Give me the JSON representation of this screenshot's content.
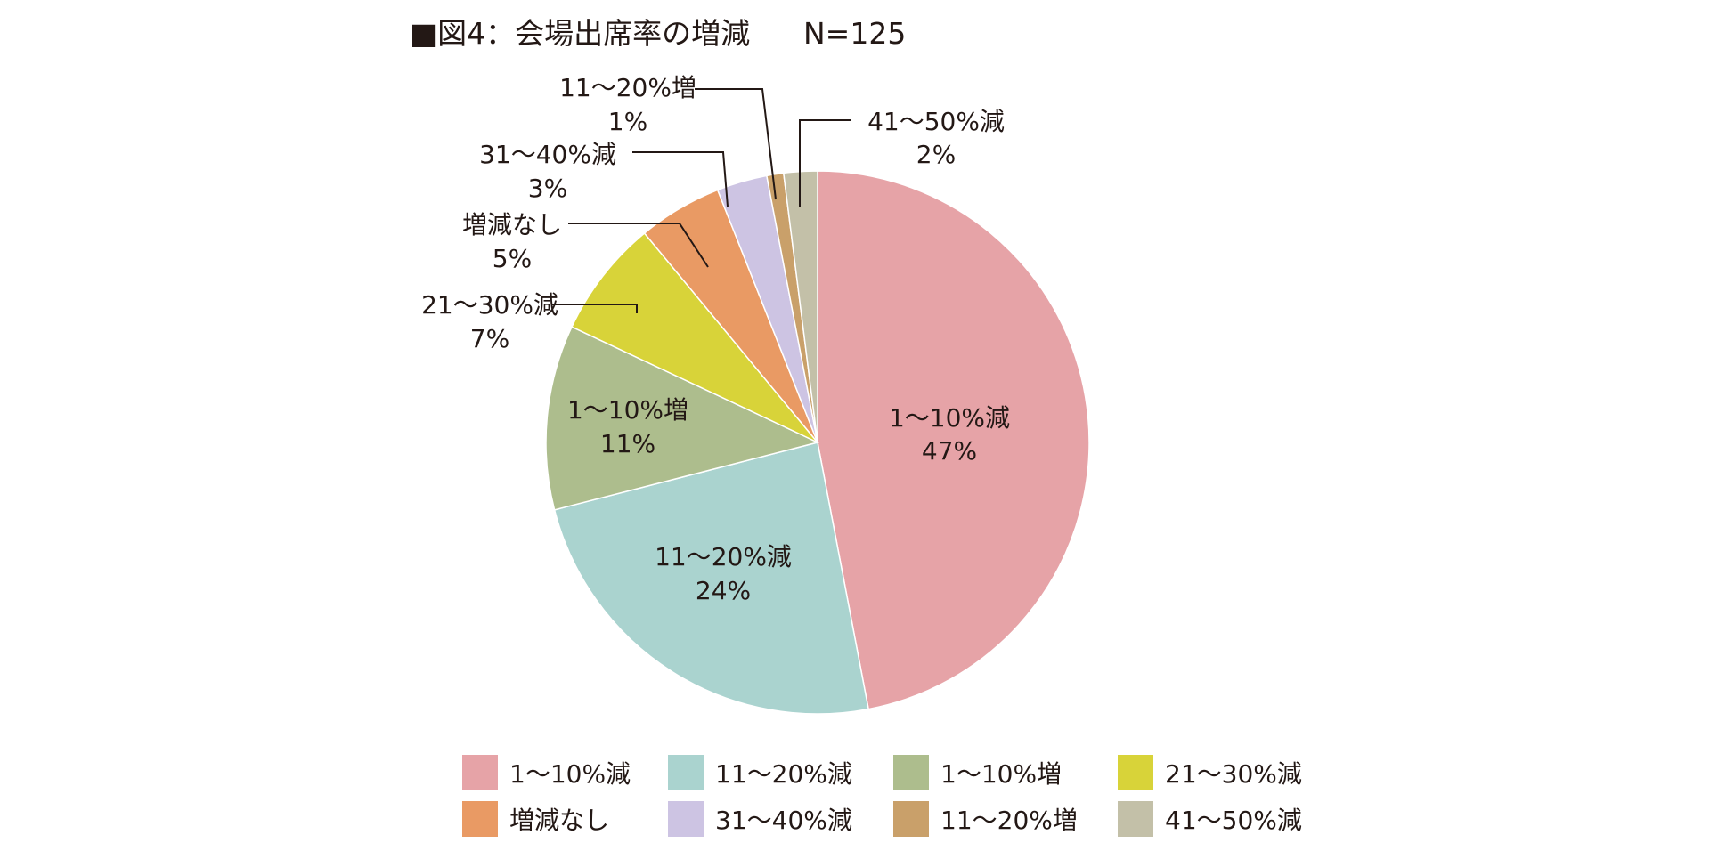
{
  "chart_data": {
    "type": "pie",
    "title": "■図4：会場出席率の増減",
    "subtitle": "N=125",
    "slices": [
      {
        "label": "1〜10%減",
        "value": 47,
        "value_label": "47%",
        "color": "#e6a3a7"
      },
      {
        "label": "11〜20%減",
        "value": 24,
        "value_label": "24%",
        "color": "#aad3cf"
      },
      {
        "label": "1〜10%増",
        "value": 11,
        "value_label": "11%",
        "color": "#adbd8d"
      },
      {
        "label": "21〜30%減",
        "value": 7,
        "value_label": "7%",
        "color": "#d8d339"
      },
      {
        "label": "増減なし",
        "value": 5,
        "value_label": "5%",
        "color": "#e99a64"
      },
      {
        "label": "31〜40%減",
        "value": 3,
        "value_label": "3%",
        "color": "#cdc4e3"
      },
      {
        "label": "11〜20%増",
        "value": 1,
        "value_label": "1%",
        "color": "#c9a06a"
      },
      {
        "label": "41〜50%減",
        "value": 2,
        "value_label": "2%",
        "color": "#c3c0a8"
      }
    ],
    "start_angle": "12 o'clock",
    "direction": "clockwise",
    "legend_placement": "bottom",
    "legend_columns": 4
  }
}
